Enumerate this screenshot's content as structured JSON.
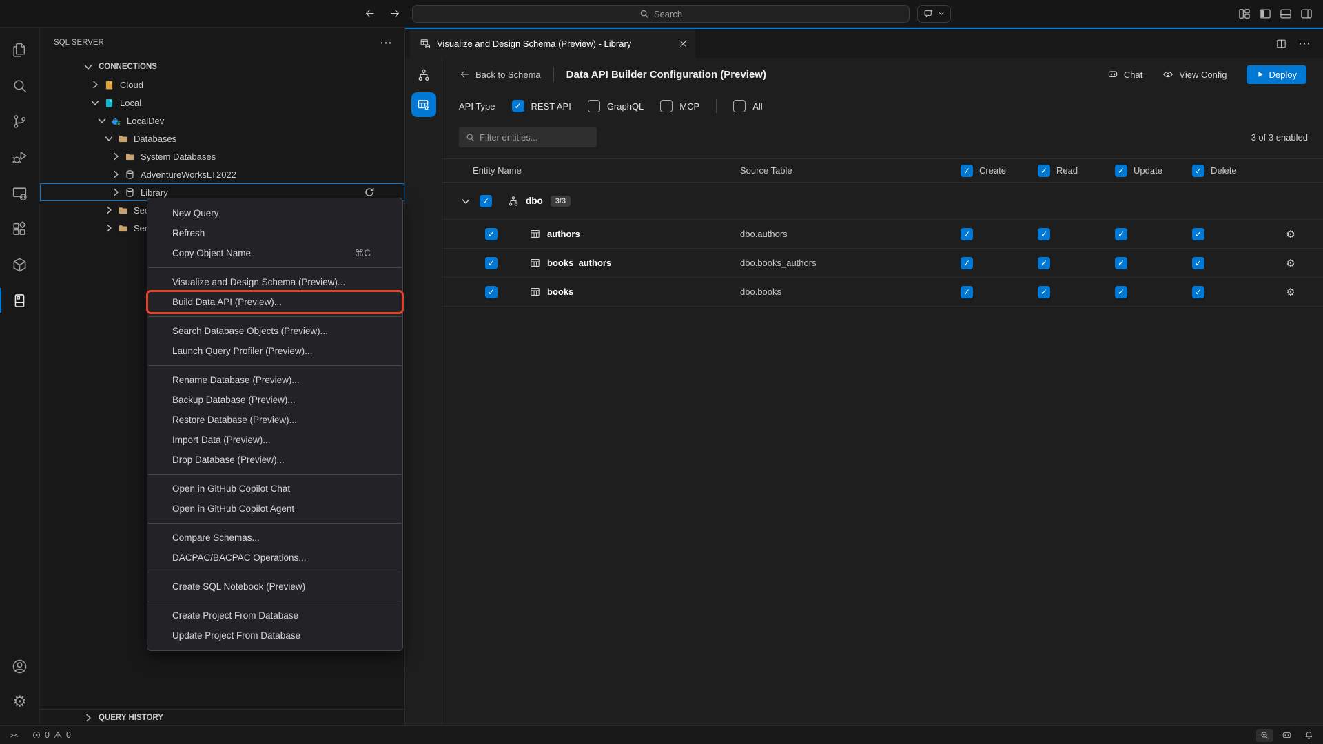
{
  "titlebar": {
    "search_placeholder": "Search"
  },
  "sidebar": {
    "title": "SQL SERVER",
    "connections_header": "CONNECTIONS",
    "query_history_header": "QUERY HISTORY",
    "tree": [
      {
        "label": "Cloud",
        "level": 1,
        "icon": "server-orange",
        "chevron": "right"
      },
      {
        "label": "Local",
        "level": 1,
        "icon": "server-cyan",
        "chevron": "down"
      },
      {
        "label": "LocalDev",
        "level": 2,
        "icon": "docker",
        "chevron": "down"
      },
      {
        "label": "Databases",
        "level": 3,
        "icon": "folder",
        "chevron": "down"
      },
      {
        "label": "System Databases",
        "level": 4,
        "icon": "folder",
        "chevron": "right"
      },
      {
        "label": "AdventureWorksLT2022",
        "level": 4,
        "icon": "database",
        "chevron": "right"
      },
      {
        "label": "Library",
        "level": 4,
        "icon": "database",
        "chevron": "right",
        "selected": true,
        "action_icon": "refresh"
      },
      {
        "label": "Security",
        "level": 3,
        "icon": "folder",
        "chevron": "right"
      },
      {
        "label": "Server Obj",
        "level": 3,
        "icon": "folder",
        "chevron": "right"
      }
    ]
  },
  "context_menu": {
    "highlight_color": "#e5412a",
    "groups": [
      {
        "items": [
          {
            "label": "New Query"
          },
          {
            "label": "Refresh"
          },
          {
            "label": "Copy Object Name",
            "shortcut": "⌘C"
          }
        ]
      },
      {
        "items": [
          {
            "label": "Visualize and Design Schema (Preview)..."
          },
          {
            "label": "Build Data API (Preview)...",
            "highlighted": true
          }
        ]
      },
      {
        "items": [
          {
            "label": "Search Database Objects (Preview)..."
          },
          {
            "label": "Launch Query Profiler (Preview)..."
          }
        ]
      },
      {
        "items": [
          {
            "label": "Rename Database (Preview)..."
          },
          {
            "label": "Backup Database (Preview)..."
          },
          {
            "label": "Restore Database (Preview)..."
          },
          {
            "label": "Import Data (Preview)..."
          },
          {
            "label": "Drop Database (Preview)..."
          }
        ]
      },
      {
        "items": [
          {
            "label": "Open in GitHub Copilot Chat"
          },
          {
            "label": "Open in GitHub Copilot Agent"
          }
        ]
      },
      {
        "items": [
          {
            "label": "Compare Schemas..."
          },
          {
            "label": "DACPAC/BACPAC Operations..."
          }
        ]
      },
      {
        "items": [
          {
            "label": "Create SQL Notebook (Preview)"
          }
        ]
      },
      {
        "items": [
          {
            "label": "Create Project From Database"
          },
          {
            "label": "Update Project From Database"
          }
        ]
      }
    ]
  },
  "editor": {
    "tab": {
      "title": "Visualize and Design Schema (Preview) - Library"
    },
    "toolbar": {
      "back_label": "Back to Schema",
      "title": "Data API Builder Configuration (Preview)",
      "chat_label": "Chat",
      "view_config_label": "View Config",
      "deploy_label": "Deploy"
    },
    "api_type": {
      "label": "API Type",
      "options": [
        {
          "label": "REST API",
          "checked": true
        },
        {
          "label": "GraphQL",
          "checked": false
        },
        {
          "label": "MCP",
          "checked": false
        }
      ],
      "all_option": {
        "label": "All",
        "checked": false
      }
    },
    "filter": {
      "placeholder": "Filter entities..."
    },
    "summary": "3 of 3 enabled",
    "table": {
      "columns": {
        "entity": "Entity Name",
        "source": "Source Table",
        "create": "Create",
        "read": "Read",
        "update": "Update",
        "delete": "Delete"
      },
      "header_checkboxes": {
        "create": true,
        "read": true,
        "update": true,
        "delete": true
      },
      "group": {
        "name": "dbo",
        "badge": "3/3",
        "checked": true,
        "expanded": true
      },
      "rows": [
        {
          "entity": "authors",
          "source": "dbo.authors",
          "checked": true,
          "create": true,
          "read": true,
          "update": true,
          "delete": true
        },
        {
          "entity": "books_authors",
          "source": "dbo.books_authors",
          "checked": true,
          "create": true,
          "read": true,
          "update": true,
          "delete": true
        },
        {
          "entity": "books",
          "source": "dbo.books",
          "checked": true,
          "create": true,
          "read": true,
          "update": true,
          "delete": true
        }
      ]
    }
  },
  "status_bar": {
    "errors": "0",
    "warnings": "0"
  },
  "colors": {
    "accent": "#0078d4",
    "highlight_red": "#e5412a",
    "folder": "#cba36f",
    "cloud_icon": "#e2a33e",
    "local_icon": "#12b7c9",
    "docker_blue": "#2496ed"
  }
}
